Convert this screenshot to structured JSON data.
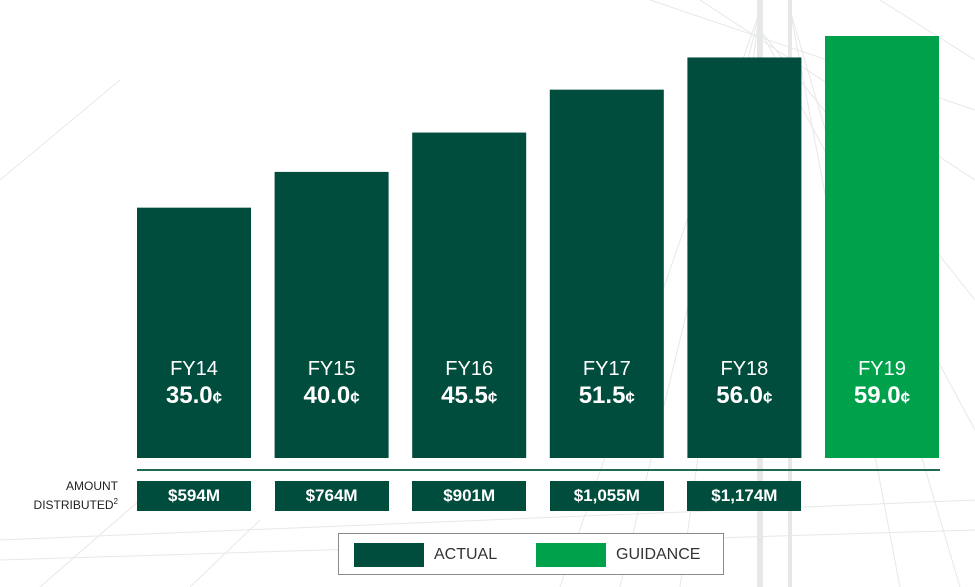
{
  "colors": {
    "actual": "#014d3d",
    "guidance": "#00a14b",
    "baseline": "#1f6b55"
  },
  "chart_data": {
    "type": "bar",
    "categories": [
      "FY14",
      "FY15",
      "FY16",
      "FY17",
      "FY18",
      "FY19"
    ],
    "values": [
      35.0,
      40.0,
      45.5,
      51.5,
      56.0,
      59.0
    ],
    "value_labels": [
      "35.0",
      "40.0",
      "45.5",
      "51.5",
      "56.0",
      "59.0"
    ],
    "unit_symbol": "¢",
    "bar_kind": [
      "ACTUAL",
      "ACTUAL",
      "ACTUAL",
      "ACTUAL",
      "ACTUAL",
      "GUIDANCE"
    ],
    "amount_row_label": "AMOUNT DISTRIBUTED",
    "amount_row_footnote": "2",
    "amounts": [
      "$594M",
      "$764M",
      "$901M",
      "$1,055M",
      "$1,174M"
    ],
    "legend": {
      "actual": "ACTUAL",
      "guidance": "GUIDANCE",
      "position": "bottom-center"
    },
    "ylim": [
      0,
      59.0
    ],
    "grid": false
  }
}
